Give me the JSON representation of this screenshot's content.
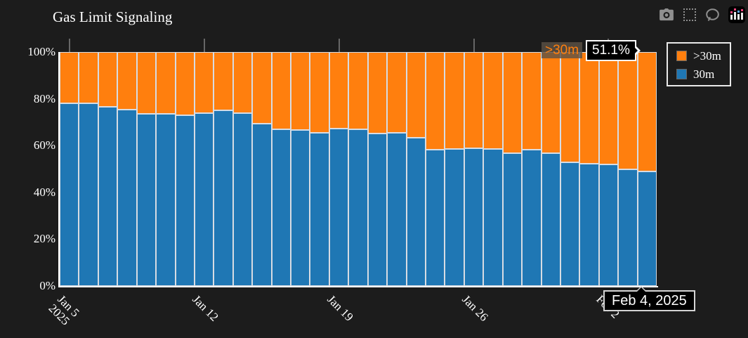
{
  "title": "Gas Limit Signaling",
  "toolbar": {
    "buttons": [
      {
        "name": "camera-icon"
      },
      {
        "name": "box-select-icon"
      },
      {
        "name": "comment-icon"
      },
      {
        "name": "chart-logo-icon"
      }
    ]
  },
  "legend": {
    "items": [
      {
        "label": ">30m",
        "color": "#ff7f0e"
      },
      {
        "label": "30m",
        "color": "#1f77b4"
      }
    ]
  },
  "hover": {
    "series_label": ">30m",
    "value_label": "51.1%",
    "date_label": "Feb 4, 2025"
  },
  "colors": {
    "background": "#1c1c1c",
    "bar_blue": "#1f77b4",
    "bar_orange": "#ff7f0e",
    "bar_border": "#d7dce3",
    "axis_line": "#ffffff",
    "top_tick": "#666666",
    "text": "#ffffff"
  },
  "chart_data": {
    "type": "bar",
    "stacked": true,
    "title": "Gas Limit Signaling",
    "ylim": [
      0,
      100
    ],
    "legend_position": "top-right",
    "x": [
      "Jan 5",
      "Jan 6",
      "Jan 7",
      "Jan 8",
      "Jan 9",
      "Jan 10",
      "Jan 11",
      "Jan 12",
      "Jan 13",
      "Jan 14",
      "Jan 15",
      "Jan 16",
      "Jan 17",
      "Jan 18",
      "Jan 19",
      "Jan 20",
      "Jan 21",
      "Jan 22",
      "Jan 23",
      "Jan 24",
      "Jan 25",
      "Jan 26",
      "Jan 27",
      "Jan 28",
      "Jan 29",
      "Jan 30",
      "Jan 31",
      "Feb 1",
      "Feb 2",
      "Feb 3",
      "Feb 4"
    ],
    "x_tick_labels": [
      {
        "index": 0,
        "label": "Jan 5",
        "year": "2025"
      },
      {
        "index": 7,
        "label": "Jan 12",
        "year": ""
      },
      {
        "index": 14,
        "label": "Jan 19",
        "year": ""
      },
      {
        "index": 21,
        "label": "Jan 26",
        "year": ""
      },
      {
        "index": 28,
        "label": "Feb 2",
        "year": ""
      }
    ],
    "y_ticks": [
      {
        "value": 100,
        "label": "100%"
      },
      {
        "value": 80,
        "label": "80%"
      },
      {
        "value": 60,
        "label": "60%"
      },
      {
        "value": 40,
        "label": "40%"
      },
      {
        "value": 20,
        "label": "20%"
      },
      {
        "value": 0,
        "label": "0%"
      }
    ],
    "series": [
      {
        "name": "30m",
        "color": "#1f77b4",
        "values": [
          78,
          78,
          76.5,
          75.5,
          73.5,
          73.5,
          73,
          74,
          75,
          74,
          69.5,
          67,
          66.8,
          65.5,
          67.2,
          67,
          65.3,
          65.5,
          63.4,
          58.3,
          58.6,
          58.8,
          58.7,
          56.7,
          58.2,
          56.7,
          52.9,
          52.3,
          52,
          50,
          48.9
        ]
      },
      {
        "name": ">30m",
        "color": "#ff7f0e",
        "values": [
          22,
          22,
          23.5,
          24.5,
          26.5,
          26.5,
          27,
          26,
          25,
          26,
          30.5,
          33,
          33.2,
          34.5,
          32.8,
          33,
          34.7,
          34.5,
          36.6,
          41.7,
          41.4,
          41.2,
          41.3,
          43.3,
          41.8,
          43.3,
          47.1,
          47.7,
          48,
          50,
          51.1
        ]
      }
    ]
  }
}
